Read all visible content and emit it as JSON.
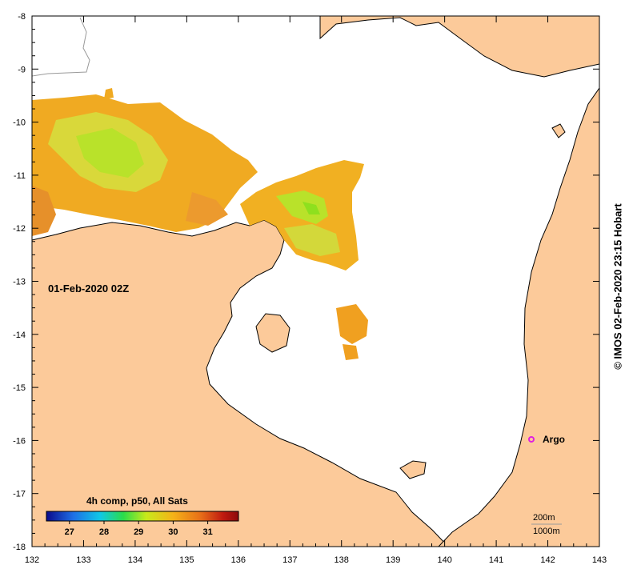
{
  "map": {
    "date_label": "01-Feb-2020 02Z",
    "credit": "© IMOS 02-Feb-2020 23:15 Hobart",
    "lon_ticks": [
      "132",
      "133",
      "134",
      "135",
      "136",
      "137",
      "138",
      "139",
      "140",
      "141",
      "142",
      "143"
    ],
    "lat_ticks": [
      "-8",
      "-9",
      "-10",
      "-11",
      "-12",
      "-13",
      "-14",
      "-15",
      "-16",
      "-17",
      "-18"
    ],
    "colorbar": {
      "title": "4h comp, p50, All Sats",
      "tick_labels": [
        "27",
        "28",
        "29",
        "30",
        "31"
      ],
      "colors": [
        "#0a0a8c",
        "#1e6fe6",
        "#10c8e6",
        "#2adc4a",
        "#c8ea1a",
        "#f5b218",
        "#e87018",
        "#c01a10",
        "#8c0a0a"
      ]
    },
    "marker": {
      "label": "Argo",
      "color": "#e020e0"
    },
    "scale": {
      "depth_label": "200m",
      "depth2_label": "1000m"
    },
    "colors": {
      "land": "#fcca9a",
      "water": "#ffffff",
      "coast": "#000000"
    }
  }
}
